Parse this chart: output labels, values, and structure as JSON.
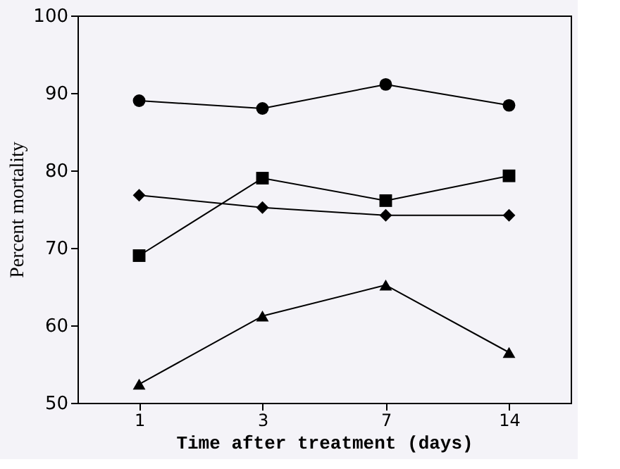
{
  "chart_data": {
    "type": "line",
    "xlabel": "Time after treatment (days)",
    "ylabel": "Percent mortality",
    "categories": [
      "1",
      "3",
      "7",
      "14"
    ],
    "series": [
      {
        "color": "#000000",
        "marker": "circle",
        "values": [
          89.0,
          88.0,
          91.1,
          88.4
        ]
      },
      {
        "color": "#000000",
        "marker": "square",
        "values": [
          69.0,
          79.0,
          76.1,
          79.3
        ]
      },
      {
        "color": "#000000",
        "marker": "diamond",
        "values": [
          76.8,
          75.2,
          74.2,
          74.2
        ]
      },
      {
        "color": "#000000",
        "marker": "triangle",
        "values": [
          52.4,
          61.2,
          65.2,
          56.5
        ]
      }
    ],
    "ylim": [
      50,
      100
    ],
    "yticks": [
      50,
      60,
      70,
      80,
      90,
      100
    ],
    "grid": false,
    "line_style": "solid"
  }
}
